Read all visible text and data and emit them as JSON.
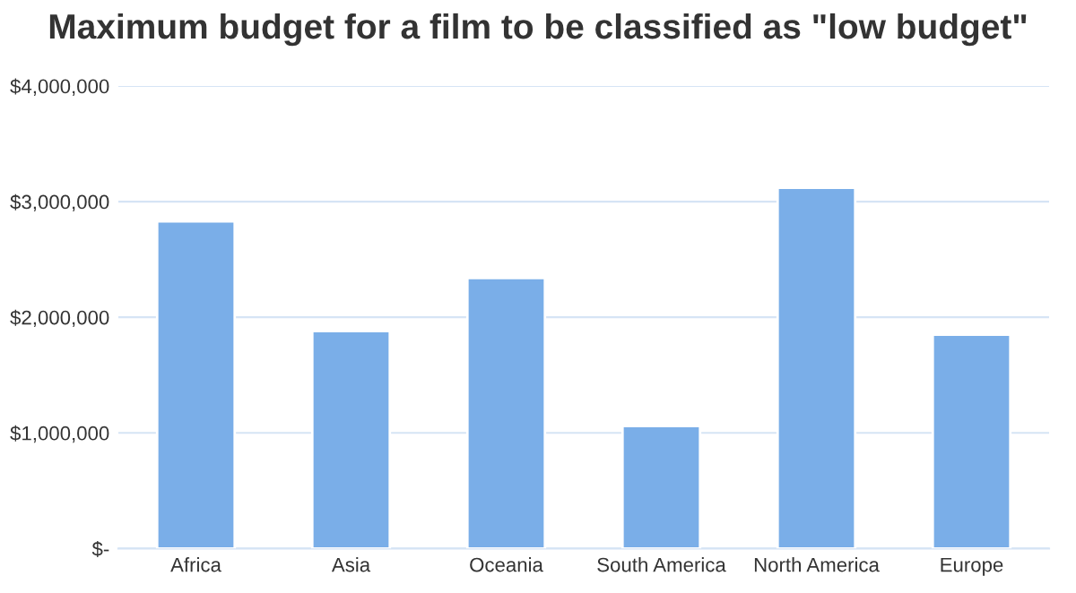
{
  "chart_data": {
    "type": "bar",
    "title": "Maximum budget for a film to be classified as \"low budget\"",
    "categories": [
      "Africa",
      "Asia",
      "Oceania",
      "South America",
      "North America",
      "Europe"
    ],
    "values": [
      2830000,
      1880000,
      2340000,
      1060000,
      3120000,
      1850000
    ],
    "color": "#7aaee8",
    "ylim": [
      0,
      4000000
    ],
    "yticks": [
      {
        "value": 0,
        "label": "$-"
      },
      {
        "value": 1000000,
        "label": "$1,000,000"
      },
      {
        "value": 2000000,
        "label": "$2,000,000"
      },
      {
        "value": 3000000,
        "label": "$3,000,000"
      },
      {
        "value": 4000000,
        "label": "$4,000,000"
      }
    ],
    "grid": "y"
  }
}
